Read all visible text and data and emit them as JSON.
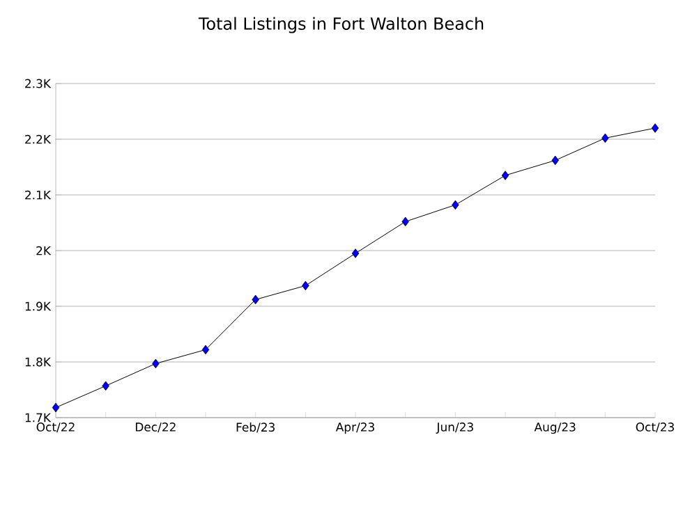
{
  "chart_data": {
    "type": "line",
    "title": "Total Listings in Fort Walton Beach",
    "categories": [
      "Oct/22",
      null,
      "Dec/22",
      null,
      "Feb/23",
      null,
      "Apr/23",
      null,
      "Jun/23",
      null,
      "Aug/23",
      null,
      "Oct/23"
    ],
    "series": [
      {
        "color": "#0000ff",
        "values": [
          1718,
          1757,
          1797,
          1822,
          1912,
          1937,
          1995,
          2052,
          2082,
          2135,
          2162,
          2202,
          2220
        ]
      }
    ],
    "ylim": [
      1700,
      2300
    ],
    "yticks": [
      {
        "value": 1700,
        "label": "1.7K"
      },
      {
        "value": 1800,
        "label": "1.8K"
      },
      {
        "value": 1900,
        "label": "1.9K"
      },
      {
        "value": 2000,
        "label": "2K"
      },
      {
        "value": 2100,
        "label": "2.1K"
      },
      {
        "value": 2200,
        "label": "2.2K"
      },
      {
        "value": 2300,
        "label": "2.3K"
      }
    ],
    "grid": "y",
    "marker": "diamond",
    "line_style": "solid"
  }
}
